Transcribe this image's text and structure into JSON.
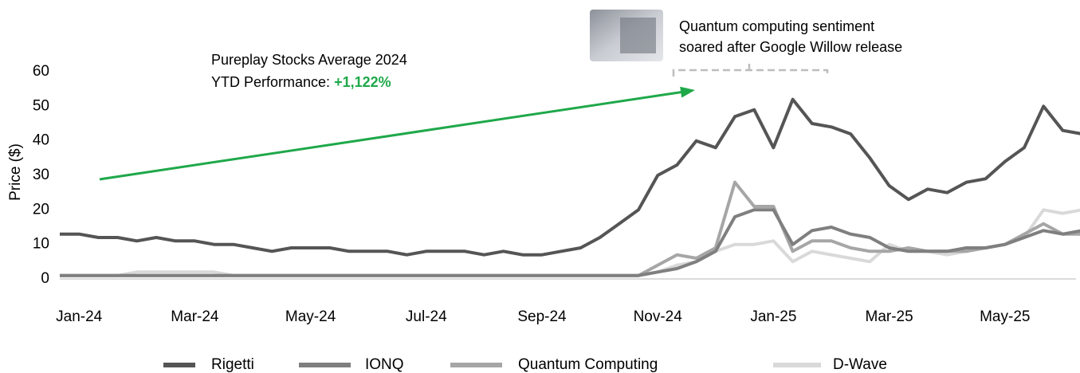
{
  "chart_data": {
    "type": "line",
    "y_label": "Price ($)",
    "annotations": [
      "Pureplay Stocks Average 2024",
      "YTD Performance:",
      "+1,122%",
      "Quantum computing sentiment",
      "soared after Google Willow release"
    ],
    "annotation_color": "#1fa84a",
    "categories": [
      null,
      "Jan-24",
      null,
      null,
      null,
      null,
      null,
      "Mar-24",
      null,
      null,
      null,
      null,
      null,
      "May-24",
      null,
      null,
      null,
      null,
      null,
      "Jul-24",
      null,
      null,
      null,
      null,
      null,
      "Sep-24",
      null,
      null,
      null,
      null,
      null,
      "Nov-24",
      null,
      null,
      null,
      null,
      null,
      "Jan-25",
      null,
      null,
      null,
      null,
      null,
      "Mar-25",
      null,
      null,
      null,
      null,
      null,
      "May-25",
      null,
      null,
      null,
      null
    ],
    "ylim": [
      0,
      60
    ],
    "yticks": [
      0,
      10,
      20,
      30,
      40,
      50,
      60
    ],
    "grid": false,
    "legend": "bottom",
    "series": [
      {
        "name": "Rigetti",
        "color": "#555555",
        "values": [
          13,
          13,
          12,
          12,
          11,
          12,
          11,
          11,
          10,
          10,
          9,
          8,
          9,
          9,
          9,
          8,
          8,
          8,
          7,
          8,
          8,
          8,
          7,
          8,
          7,
          7,
          8,
          9,
          12,
          16,
          20,
          30,
          33,
          40,
          38,
          47,
          49,
          38,
          52,
          45,
          44,
          42,
          35,
          27,
          23,
          26,
          25,
          28,
          29,
          34,
          38,
          50,
          43,
          42
        ]
      },
      {
        "name": "IONQ",
        "color": "#7f7f7f",
        "values": [
          1,
          1,
          1,
          1,
          1,
          1,
          1,
          1,
          1,
          1,
          1,
          1,
          1,
          1,
          1,
          1,
          1,
          1,
          1,
          1,
          1,
          1,
          1,
          1,
          1,
          1,
          1,
          1,
          1,
          1,
          1,
          2,
          3,
          5,
          8,
          18,
          20,
          20,
          10,
          14,
          15,
          13,
          12,
          9,
          8,
          8,
          8,
          9,
          9,
          10,
          12,
          14,
          13,
          14
        ]
      },
      {
        "name": "Quantum Computing",
        "color": "#a6a6a6",
        "values": [
          1,
          1,
          1,
          1,
          1,
          1,
          1,
          1,
          1,
          1,
          1,
          1,
          1,
          1,
          1,
          1,
          1,
          1,
          1,
          1,
          1,
          1,
          1,
          1,
          1,
          1,
          1,
          1,
          1,
          1,
          1,
          4,
          7,
          6,
          9,
          28,
          21,
          21,
          8,
          11,
          11,
          9,
          8,
          8,
          9,
          8,
          8,
          8,
          9,
          10,
          13,
          16,
          13,
          13
        ]
      },
      {
        "name": "D-Wave",
        "color": "#d9d9d9",
        "values": [
          1,
          1,
          1,
          1,
          2,
          2,
          2,
          2,
          2,
          1,
          1,
          1,
          1,
          1,
          1,
          1,
          1,
          1,
          1,
          1,
          1,
          1,
          1,
          1,
          1,
          1,
          1,
          1,
          1,
          1,
          1,
          2,
          4,
          5,
          8,
          10,
          10,
          11,
          5,
          8,
          7,
          6,
          5,
          10,
          8,
          8,
          7,
          8,
          9,
          10,
          12,
          20,
          19,
          20
        ]
      }
    ]
  }
}
